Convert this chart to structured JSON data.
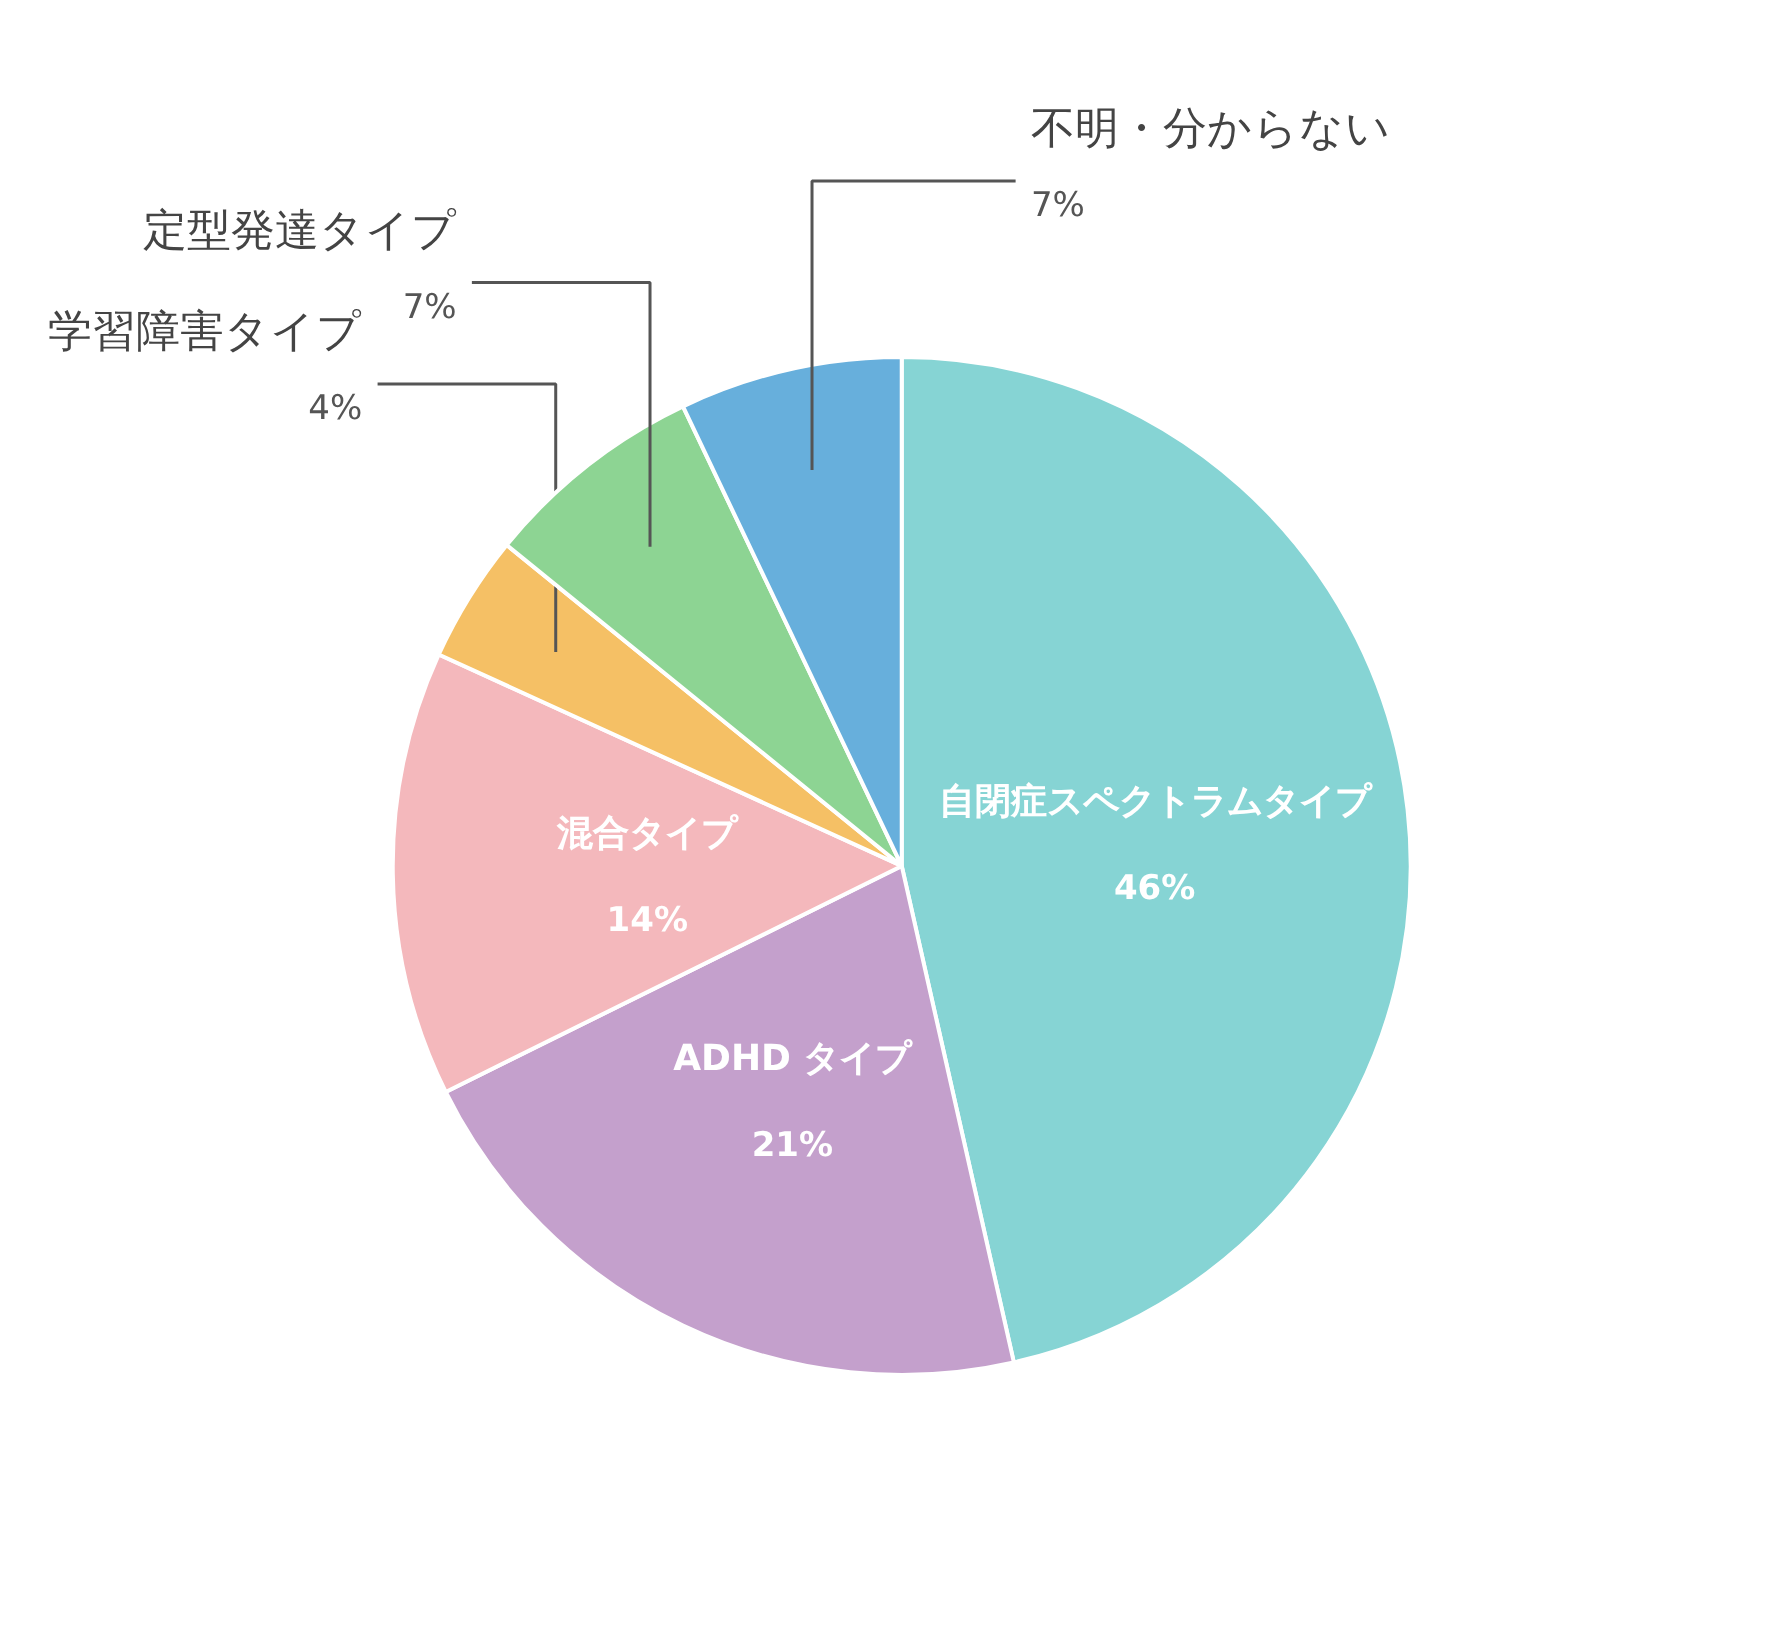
{
  "chart_data": {
    "type": "pie",
    "categories": [
      "自閉症スペクトラムタイプ",
      "ADHD タイプ",
      "混合タイプ",
      "学習障害タイプ",
      "定型発達タイプ",
      "不明・分からない"
    ],
    "values": [
      46,
      21,
      14,
      4,
      7,
      7
    ],
    "value_labels": [
      "46%",
      "21%",
      "14%",
      "4%",
      "7%",
      "7%"
    ],
    "colors": [
      "#86d4d4",
      "#c4a0cc",
      "#f4b8bc",
      "#f5c065",
      "#8dd493",
      "#67afdc"
    ],
    "legend": false
  }
}
